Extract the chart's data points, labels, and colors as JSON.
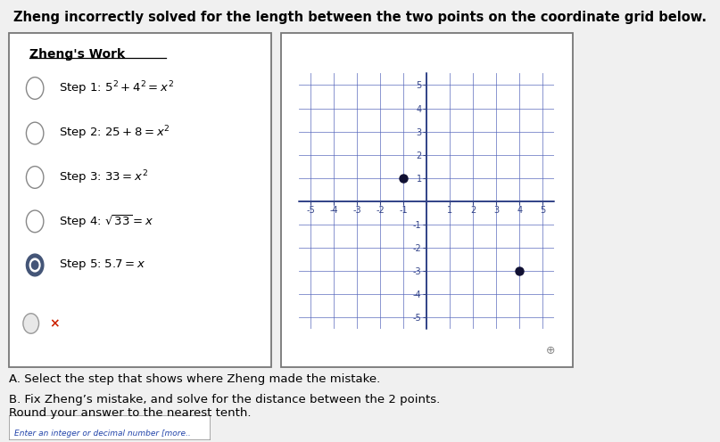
{
  "title": "Zheng incorrectly solved for the length between the two points on the coordinate grid below.",
  "title_fontsize": 10.5,
  "work_title": "Zheng's Work",
  "step_labels": [
    "Step 1: $5^2+4^2=x^2$",
    "Step 2: $25+8=x^2$",
    "Step 3: $33=x^2$",
    "Step 4: $\\sqrt{33}=x$",
    "Step 5: $5.7=x$"
  ],
  "radio_filled": [
    false,
    false,
    false,
    false,
    true
  ],
  "point1": [
    -1,
    1
  ],
  "point2": [
    4,
    -3
  ],
  "grid_range": [
    -5,
    5
  ],
  "grid_color": "#5566bb",
  "point_color": "#111133",
  "axis_color": "#334488",
  "question_A": "A. Select the step that shows where Zheng made the mistake.",
  "question_B": "B. Fix Zheng’s mistake, and solve for the distance between the 2 points.\nRound your answer to the nearest tenth.",
  "input_label": "Enter an integer or decimal number [more..",
  "background_color": "#f0f0f0",
  "box_bg": "#ffffff",
  "box_border_color": "#777777",
  "wrong_marker": "×",
  "wrong_marker_color": "#cc2200"
}
